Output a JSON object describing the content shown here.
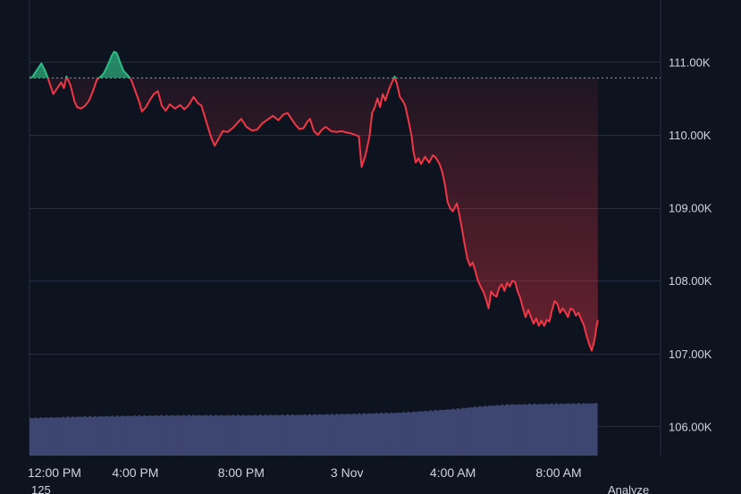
{
  "chart_data": {
    "type": "line",
    "baseline": 110780,
    "ylim": [
      105600,
      111850
    ],
    "y_ticks": [
      {
        "value": 111000,
        "label": "111.00K"
      },
      {
        "value": 110000,
        "label": "110.00K"
      },
      {
        "value": 109000,
        "label": "109.00K"
      },
      {
        "value": 108000,
        "label": "108.00K"
      },
      {
        "value": 107000,
        "label": "107.00K"
      },
      {
        "value": 106000,
        "label": "106.00K"
      }
    ],
    "x_ticks": [
      {
        "t": 0,
        "label": "12:00 PM"
      },
      {
        "t": 4,
        "label": "4:00 PM"
      },
      {
        "t": 8,
        "label": "8:00 PM"
      },
      {
        "t": 12,
        "label": "3 Nov"
      },
      {
        "t": 16,
        "label": "4:00 AM"
      },
      {
        "t": 20,
        "label": "8:00 AM"
      }
    ],
    "xlim": [
      0,
      23.85
    ],
    "colors": {
      "up": "#2ebd85",
      "down": "#f23645",
      "volume": "#3d4670",
      "grid": "#262d3e",
      "text": "#d1d4dc",
      "baseline": "#9aa0ac"
    },
    "price": [
      [
        -0.1,
        110780
      ],
      [
        0.1,
        110790
      ],
      [
        0.3,
        110900
      ],
      [
        0.45,
        110980
      ],
      [
        0.6,
        110870
      ],
      [
        0.75,
        110720
      ],
      [
        0.9,
        110560
      ],
      [
        1.05,
        110640
      ],
      [
        1.2,
        110720
      ],
      [
        1.3,
        110640
      ],
      [
        1.4,
        110800
      ],
      [
        1.55,
        110680
      ],
      [
        1.7,
        110460
      ],
      [
        1.8,
        110380
      ],
      [
        1.95,
        110360
      ],
      [
        2.1,
        110400
      ],
      [
        2.25,
        110470
      ],
      [
        2.4,
        110600
      ],
      [
        2.55,
        110760
      ],
      [
        2.7,
        110800
      ],
      [
        2.8,
        110840
      ],
      [
        2.9,
        110910
      ],
      [
        3.0,
        110990
      ],
      [
        3.1,
        111080
      ],
      [
        3.2,
        111140
      ],
      [
        3.3,
        111120
      ],
      [
        3.4,
        111020
      ],
      [
        3.55,
        110880
      ],
      [
        3.75,
        110800
      ],
      [
        3.85,
        110750
      ],
      [
        4.0,
        110600
      ],
      [
        4.15,
        110450
      ],
      [
        4.25,
        110320
      ],
      [
        4.4,
        110380
      ],
      [
        4.55,
        110480
      ],
      [
        4.7,
        110560
      ],
      [
        4.85,
        110600
      ],
      [
        5.0,
        110400
      ],
      [
        5.15,
        110330
      ],
      [
        5.3,
        110420
      ],
      [
        5.5,
        110360
      ],
      [
        5.7,
        110410
      ],
      [
        5.85,
        110350
      ],
      [
        6.0,
        110400
      ],
      [
        6.1,
        110460
      ],
      [
        6.2,
        110520
      ],
      [
        6.35,
        110440
      ],
      [
        6.5,
        110400
      ],
      [
        6.7,
        110160
      ],
      [
        6.85,
        109980
      ],
      [
        7.0,
        109850
      ],
      [
        7.15,
        109950
      ],
      [
        7.3,
        110050
      ],
      [
        7.5,
        110040
      ],
      [
        7.7,
        110100
      ],
      [
        7.85,
        110160
      ],
      [
        8.0,
        110220
      ],
      [
        8.2,
        110110
      ],
      [
        8.4,
        110060
      ],
      [
        8.6,
        110070
      ],
      [
        8.8,
        110160
      ],
      [
        9.0,
        110210
      ],
      [
        9.2,
        110260
      ],
      [
        9.4,
        110200
      ],
      [
        9.6,
        110280
      ],
      [
        9.75,
        110300
      ],
      [
        9.9,
        110220
      ],
      [
        10.05,
        110140
      ],
      [
        10.2,
        110080
      ],
      [
        10.35,
        110090
      ],
      [
        10.5,
        110180
      ],
      [
        10.6,
        110220
      ],
      [
        10.75,
        110050
      ],
      [
        10.9,
        110000
      ],
      [
        11.05,
        110070
      ],
      [
        11.2,
        110110
      ],
      [
        11.4,
        110050
      ],
      [
        11.6,
        110040
      ],
      [
        11.8,
        110050
      ],
      [
        12.0,
        110030
      ],
      [
        12.15,
        110020
      ],
      [
        12.3,
        110000
      ],
      [
        12.45,
        109980
      ],
      [
        12.55,
        109560
      ],
      [
        12.7,
        109720
      ],
      [
        12.85,
        109980
      ],
      [
        12.95,
        110300
      ],
      [
        13.05,
        110380
      ],
      [
        13.15,
        110500
      ],
      [
        13.25,
        110380
      ],
      [
        13.35,
        110560
      ],
      [
        13.45,
        110470
      ],
      [
        13.6,
        110640
      ],
      [
        13.7,
        110720
      ],
      [
        13.8,
        110800
      ],
      [
        13.9,
        110680
      ],
      [
        14.0,
        110520
      ],
      [
        14.1,
        110470
      ],
      [
        14.2,
        110400
      ],
      [
        14.35,
        110150
      ],
      [
        14.45,
        109970
      ],
      [
        14.5,
        109790
      ],
      [
        14.6,
        109620
      ],
      [
        14.7,
        109680
      ],
      [
        14.8,
        109600
      ],
      [
        14.95,
        109700
      ],
      [
        15.1,
        109620
      ],
      [
        15.25,
        109720
      ],
      [
        15.35,
        109690
      ],
      [
        15.5,
        109600
      ],
      [
        15.6,
        109490
      ],
      [
        15.7,
        109320
      ],
      [
        15.8,
        109080
      ],
      [
        15.9,
        108990
      ],
      [
        16.0,
        108950
      ],
      [
        16.15,
        109060
      ],
      [
        16.25,
        108900
      ],
      [
        16.35,
        108700
      ],
      [
        16.45,
        108490
      ],
      [
        16.55,
        108300
      ],
      [
        16.65,
        108200
      ],
      [
        16.75,
        108250
      ],
      [
        16.85,
        108130
      ],
      [
        16.95,
        108000
      ],
      [
        17.05,
        107920
      ],
      [
        17.15,
        107850
      ],
      [
        17.25,
        107750
      ],
      [
        17.35,
        107620
      ],
      [
        17.45,
        107850
      ],
      [
        17.55,
        107800
      ],
      [
        17.65,
        107780
      ],
      [
        17.75,
        107900
      ],
      [
        17.85,
        107950
      ],
      [
        17.95,
        107860
      ],
      [
        18.05,
        107970
      ],
      [
        18.15,
        107920
      ],
      [
        18.25,
        108000
      ],
      [
        18.35,
        107980
      ],
      [
        18.45,
        107850
      ],
      [
        18.55,
        107760
      ],
      [
        18.65,
        107620
      ],
      [
        18.75,
        107500
      ],
      [
        18.85,
        107600
      ],
      [
        18.95,
        107500
      ],
      [
        19.05,
        107410
      ],
      [
        19.15,
        107480
      ],
      [
        19.25,
        107380
      ],
      [
        19.35,
        107450
      ],
      [
        19.45,
        107380
      ],
      [
        19.55,
        107460
      ],
      [
        19.65,
        107440
      ],
      [
        19.75,
        107600
      ],
      [
        19.85,
        107720
      ],
      [
        19.95,
        107680
      ],
      [
        20.05,
        107560
      ],
      [
        20.15,
        107620
      ],
      [
        20.25,
        107570
      ],
      [
        20.35,
        107500
      ],
      [
        20.45,
        107620
      ],
      [
        20.55,
        107600
      ],
      [
        20.65,
        107520
      ],
      [
        20.75,
        107560
      ],
      [
        20.85,
        107470
      ],
      [
        20.95,
        107390
      ],
      [
        21.05,
        107250
      ],
      [
        21.15,
        107130
      ],
      [
        21.25,
        107040
      ],
      [
        21.35,
        107180
      ],
      [
        21.42,
        107350
      ],
      [
        21.48,
        107460
      ]
    ],
    "volume_height": [
      [
        0,
        0.84
      ],
      [
        2,
        0.87
      ],
      [
        4,
        0.89
      ],
      [
        6,
        0.9
      ],
      [
        8,
        0.9
      ],
      [
        10,
        0.91
      ],
      [
        12,
        0.93
      ],
      [
        14,
        0.96
      ],
      [
        16,
        1.04
      ],
      [
        17,
        1.1
      ],
      [
        18,
        1.14
      ],
      [
        20,
        1.16
      ],
      [
        21.45,
        1.17
      ]
    ],
    "bottom_left_label": "125",
    "bottom_right_label": "Analyze"
  }
}
